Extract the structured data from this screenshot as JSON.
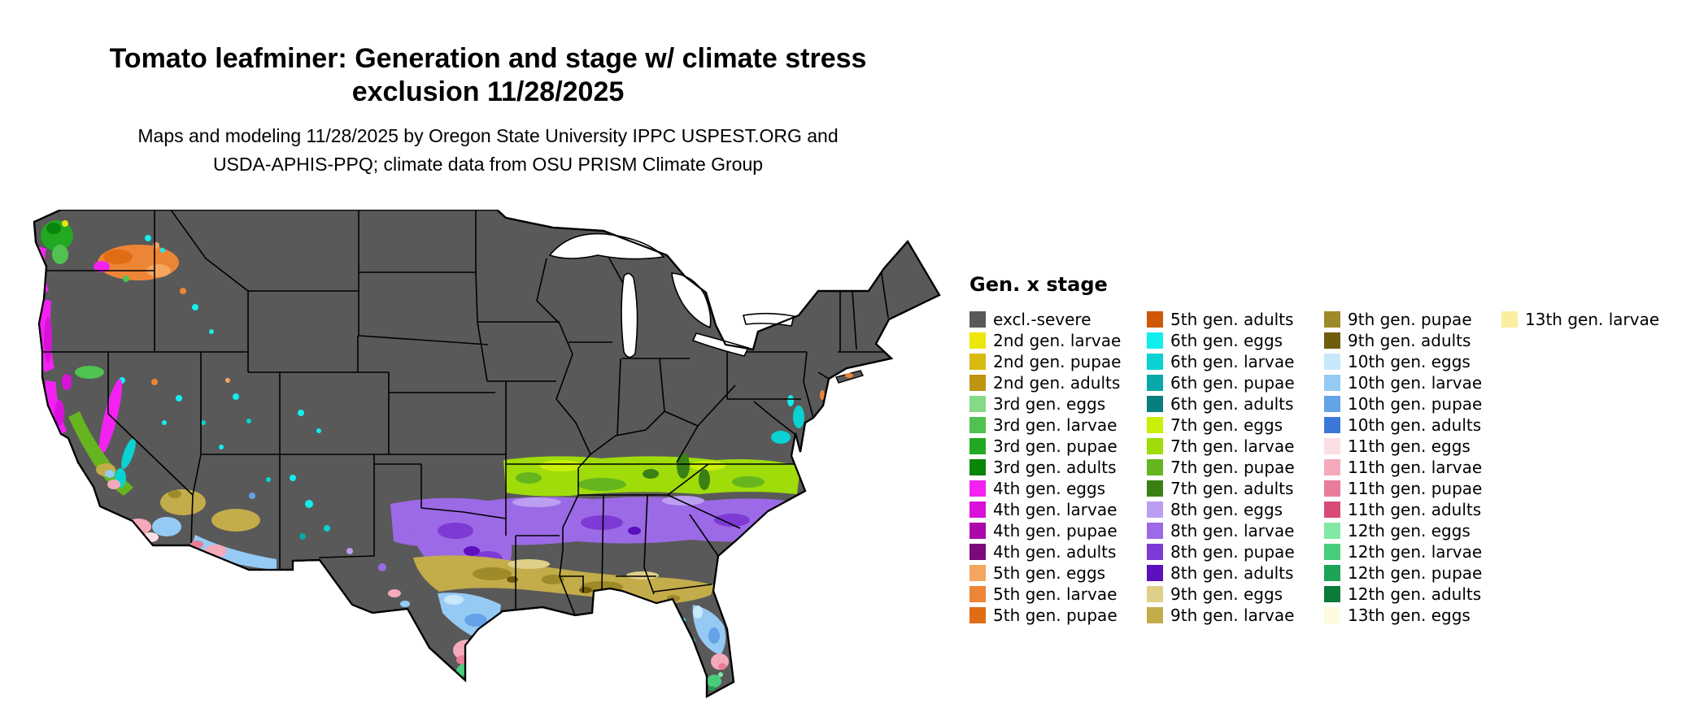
{
  "title": {
    "line1": "Tomato leafminer: Generation and stage w/ climate stress",
    "line2": "exclusion 11/28/2025"
  },
  "subtitle": {
    "line1": "Maps and modeling 11/28/2025 by Oregon State University IPPC USPEST.ORG and",
    "line2": "USDA-APHIS-PPQ; climate data from OSU PRISM Climate Group"
  },
  "legend": {
    "title": "Gen. x stage",
    "entries_per_column": 15,
    "entries": [
      {
        "key": "excl_severe",
        "label": "excl.-severe",
        "color": "#595959"
      },
      {
        "key": "g2_larvae",
        "label": "2nd gen. larvae",
        "color": "#ece60a"
      },
      {
        "key": "g2_pupae",
        "label": "2nd gen. pupae",
        "color": "#d9ba10"
      },
      {
        "key": "g2_adults",
        "label": "2nd gen. adults",
        "color": "#bf9410"
      },
      {
        "key": "g3_eggs",
        "label": "3rd gen. eggs",
        "color": "#86d986"
      },
      {
        "key": "g3_larvae",
        "label": "3rd gen. larvae",
        "color": "#4fc24f"
      },
      {
        "key": "g3_pupae",
        "label": "3rd gen. pupae",
        "color": "#22a822"
      },
      {
        "key": "g3_adults",
        "label": "3rd gen. adults",
        "color": "#0a840a"
      },
      {
        "key": "g4_eggs",
        "label": "4th gen. eggs",
        "color": "#f322f3"
      },
      {
        "key": "g4_larvae",
        "label": "4th gen. larvae",
        "color": "#d912d9"
      },
      {
        "key": "g4_pupae",
        "label": "4th gen. pupae",
        "color": "#aa08aa"
      },
      {
        "key": "g4_adults",
        "label": "4th gen. adults",
        "color": "#7d087d"
      },
      {
        "key": "g5_eggs",
        "label": "5th gen. eggs",
        "color": "#f4a55e"
      },
      {
        "key": "g5_larvae",
        "label": "5th gen. larvae",
        "color": "#ed8536"
      },
      {
        "key": "g5_pupae",
        "label": "5th gen. pupae",
        "color": "#e06d14"
      },
      {
        "key": "g5_adults",
        "label": "5th gen. adults",
        "color": "#cf5708"
      },
      {
        "key": "g6_eggs",
        "label": "6th gen. eggs",
        "color": "#12eeee"
      },
      {
        "key": "g6_larvae",
        "label": "6th gen. larvae",
        "color": "#0ad2d2"
      },
      {
        "key": "g6_pupae",
        "label": "6th gen. pupae",
        "color": "#08a8a8"
      },
      {
        "key": "g6_adults",
        "label": "6th gen. adults",
        "color": "#087e7e"
      },
      {
        "key": "g7_eggs",
        "label": "7th gen. eggs",
        "color": "#caf00a"
      },
      {
        "key": "g7_larvae",
        "label": "7th gen. larvae",
        "color": "#9fdc0a"
      },
      {
        "key": "g7_pupae",
        "label": "7th gen. pupae",
        "color": "#66b51e"
      },
      {
        "key": "g7_adults",
        "label": "7th gen. adults",
        "color": "#3a8114"
      },
      {
        "key": "g8_eggs",
        "label": "8th gen. eggs",
        "color": "#bb9ef0"
      },
      {
        "key": "g8_larvae",
        "label": "8th gen. larvae",
        "color": "#9c6ae6"
      },
      {
        "key": "g8_pupae",
        "label": "8th gen. pupae",
        "color": "#7d3ad5"
      },
      {
        "key": "g8_adults",
        "label": "8th gen. adults",
        "color": "#5d10bd"
      },
      {
        "key": "g9_eggs",
        "label": "9th gen. eggs",
        "color": "#dfd089"
      },
      {
        "key": "g9_larvae",
        "label": "9th gen. larvae",
        "color": "#c3ac4a"
      },
      {
        "key": "g9_pupae",
        "label": "9th gen. pupae",
        "color": "#9e8a28"
      },
      {
        "key": "g9_adults",
        "label": "9th gen. adults",
        "color": "#6f5c0c"
      },
      {
        "key": "g10_eggs",
        "label": "10th gen. eggs",
        "color": "#c7e8fb"
      },
      {
        "key": "g10_larvae",
        "label": "10th gen. larvae",
        "color": "#95caf4"
      },
      {
        "key": "g10_pupae",
        "label": "10th gen. pupae",
        "color": "#64a3e8"
      },
      {
        "key": "g10_adults",
        "label": "10th gen. adults",
        "color": "#3c78d8"
      },
      {
        "key": "g11_eggs",
        "label": "11th gen. eggs",
        "color": "#fcdfe4"
      },
      {
        "key": "g11_larvae",
        "label": "11th gen. larvae",
        "color": "#f5aabb"
      },
      {
        "key": "g11_pupae",
        "label": "11th gen. pupae",
        "color": "#e97c99"
      },
      {
        "key": "g11_adults",
        "label": "11th gen. adults",
        "color": "#d84b75"
      },
      {
        "key": "g12_eggs",
        "label": "12th gen. eggs",
        "color": "#81e9a3"
      },
      {
        "key": "g12_larvae",
        "label": "12th gen. larvae",
        "color": "#48cd7a"
      },
      {
        "key": "g12_pupae",
        "label": "12th gen. pupae",
        "color": "#1ea456"
      },
      {
        "key": "g12_adults",
        "label": "12th gen. adults",
        "color": "#0c7a39"
      },
      {
        "key": "g13_eggs",
        "label": "13th gen. eggs",
        "color": "#fdfadf"
      },
      {
        "key": "g13_larvae",
        "label": "13th gen. larvae",
        "color": "#f9ef9f"
      }
    ]
  },
  "map": {
    "base_fill_key": "excl_severe",
    "state_border_color": "#000000",
    "water_color": "#ffffff"
  }
}
